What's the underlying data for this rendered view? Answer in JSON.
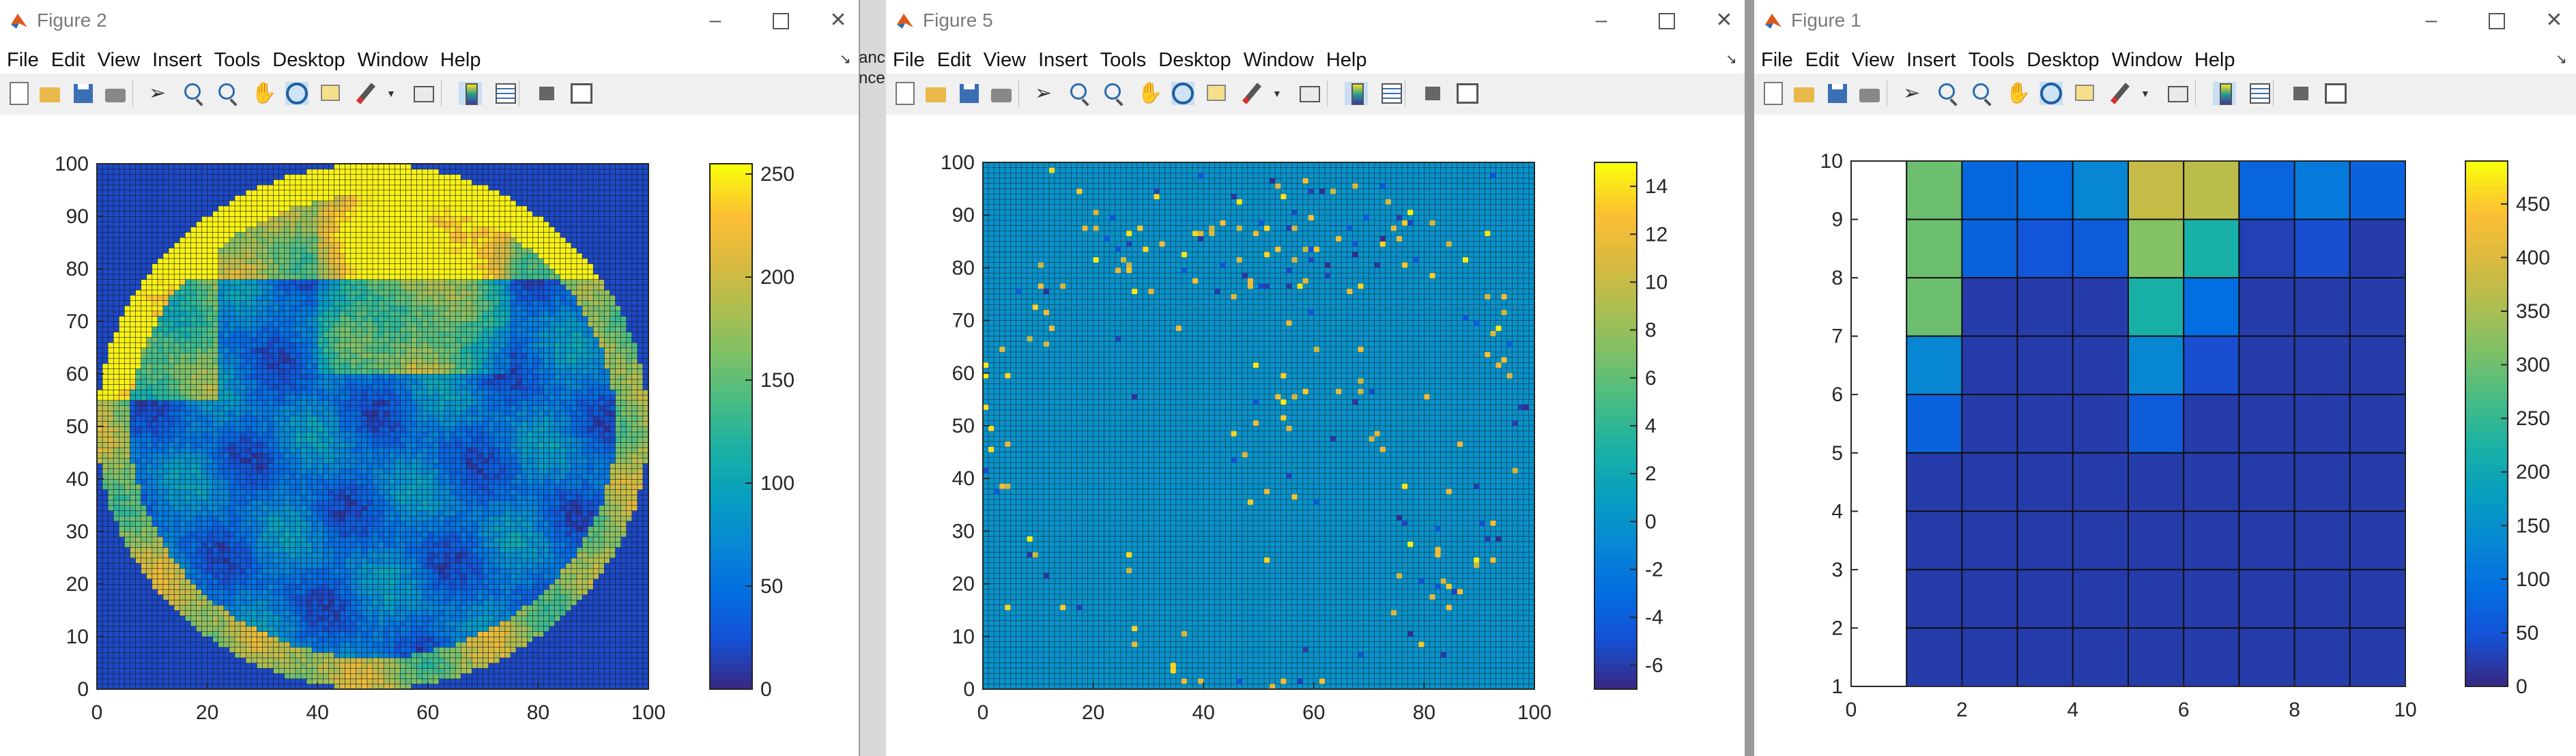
{
  "windows": [
    {
      "title": "Figure 2",
      "menu": [
        "File",
        "Edit",
        "View",
        "Insert",
        "Tools",
        "Desktop",
        "Window",
        "Help"
      ],
      "plot": {
        "xticks": [
          "0",
          "20",
          "40",
          "60",
          "80",
          "100"
        ],
        "yticks": [
          "0",
          "10",
          "20",
          "30",
          "40",
          "50",
          "60",
          "70",
          "80",
          "90",
          "100"
        ],
        "colorbar_ticks": [
          "0",
          "50",
          "100",
          "150",
          "200",
          "250"
        ]
      }
    },
    {
      "title": "Figure 5",
      "menu": [
        "File",
        "Edit",
        "View",
        "Insert",
        "Tools",
        "Desktop",
        "Window",
        "Help"
      ],
      "plot": {
        "xticks": [
          "0",
          "20",
          "40",
          "60",
          "80",
          "100"
        ],
        "yticks": [
          "0",
          "10",
          "20",
          "30",
          "40",
          "50",
          "60",
          "70",
          "80",
          "90",
          "100"
        ],
        "colorbar_ticks": [
          "-6",
          "-4",
          "-2",
          "0",
          "2",
          "4",
          "6",
          "8",
          "10",
          "12",
          "14"
        ]
      }
    },
    {
      "title": "Figure 1",
      "menu": [
        "File",
        "Edit",
        "View",
        "Insert",
        "Tools",
        "Desktop",
        "Window",
        "Help"
      ],
      "plot": {
        "xticks": [
          "0",
          "2",
          "4",
          "6",
          "8",
          "10"
        ],
        "yticks": [
          "1",
          "2",
          "3",
          "4",
          "5",
          "6",
          "7",
          "8",
          "9",
          "10"
        ],
        "colorbar_ticks": [
          "0",
          "50",
          "100",
          "150",
          "200",
          "250",
          "300",
          "350",
          "400",
          "450"
        ]
      }
    }
  ],
  "background_fragment": {
    "lines": [
      "anc",
      "nce"
    ]
  },
  "chart_data": [
    {
      "type": "heatmap",
      "colormap": "parula",
      "xlim": [
        0,
        100
      ],
      "ylim": [
        0,
        100
      ],
      "clim": [
        0,
        255
      ],
      "grid_size": [
        100,
        100
      ],
      "description_note": "",
      "xlabel": "",
      "ylabel": "",
      "title": ""
    },
    {
      "type": "heatmap",
      "colormap": "parula",
      "xlim": [
        0,
        100
      ],
      "ylim": [
        0,
        100
      ],
      "clim": [
        -7,
        15
      ],
      "grid_size": [
        100,
        100
      ],
      "xlabel": "",
      "ylabel": "",
      "title": ""
    },
    {
      "type": "heatmap",
      "colormap": "parula",
      "xlim": [
        0,
        10
      ],
      "ylim": [
        1,
        10
      ],
      "clim": [
        0,
        490
      ],
      "x": [
        1,
        2,
        3,
        4,
        5,
        6,
        7,
        8,
        9,
        10
      ],
      "y": [
        1,
        2,
        3,
        4,
        5,
        6,
        7,
        8,
        9,
        10
      ],
      "z_rows_top_to_bottom": [
        [
          null,
          300,
          80,
          90,
          130,
          380,
          370,
          75,
          110,
          70
        ],
        [
          null,
          300,
          70,
          50,
          60,
          320,
          220,
          25,
          40,
          20
        ],
        [
          null,
          300,
          20,
          20,
          20,
          220,
          90,
          20,
          20,
          20
        ],
        [
          null,
          130,
          20,
          20,
          20,
          130,
          40,
          20,
          20,
          20
        ],
        [
          null,
          70,
          20,
          20,
          20,
          60,
          20,
          20,
          20,
          20
        ],
        [
          null,
          20,
          20,
          20,
          20,
          20,
          20,
          20,
          20,
          20
        ],
        [
          null,
          20,
          20,
          20,
          20,
          20,
          20,
          20,
          20,
          20
        ],
        [
          null,
          20,
          20,
          20,
          20,
          20,
          20,
          20,
          20,
          20
        ],
        [
          null,
          20,
          20,
          20,
          20,
          20,
          20,
          20,
          20,
          20
        ]
      ],
      "xlabel": "",
      "ylabel": "",
      "title": ""
    }
  ]
}
